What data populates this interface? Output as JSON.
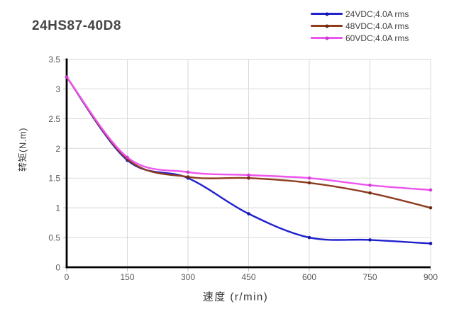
{
  "page": {
    "background": "#ffffff"
  },
  "header": {
    "title": "24HS87-40D8"
  },
  "chart_data": {
    "type": "line",
    "title": "24HS87-40D8",
    "x": [
      0,
      150,
      300,
      450,
      600,
      750,
      900
    ],
    "series": [
      {
        "name": "24VDC;4.0A rms",
        "color": "#2021CE",
        "marker_color": "#1516AC",
        "values": [
          3.2,
          1.8,
          1.5,
          0.9,
          0.5,
          0.46,
          0.4
        ]
      },
      {
        "name": "48VDC;4.0A rms",
        "color": "#8E3C1E",
        "marker_color": "#6F2D15",
        "values": [
          3.2,
          1.82,
          1.52,
          1.5,
          1.42,
          1.25,
          1.0
        ]
      },
      {
        "name": "60VDC;4.0A rms",
        "color": "#EE54EE",
        "marker_color": "#D13BD1",
        "values": [
          3.2,
          1.85,
          1.6,
          1.55,
          1.5,
          1.38,
          1.3
        ]
      }
    ],
    "xlabel": "速度 (r/min)",
    "ylabel": "转矩(N.m)",
    "xlim": [
      0,
      900
    ],
    "ylim": [
      0,
      3.5
    ],
    "xticks": [
      0,
      150,
      300,
      450,
      600,
      750,
      900
    ],
    "xtick_labels": [
      "0",
      "150",
      "300",
      "450",
      "600",
      "750",
      "900"
    ],
    "yticks": [
      0,
      0.5,
      1,
      1.5,
      2,
      2.5,
      3,
      3.5
    ],
    "ytick_labels": [
      "0",
      "0.5",
      "1",
      "1.5",
      "2",
      "2.5",
      "3",
      "3.5"
    ],
    "grid": true,
    "smooth": true,
    "legend_position": "top-right",
    "style": {
      "grid_color": "#D9D9D9",
      "axis_color": "#000000",
      "tick_mark_color": "#BFBFBF",
      "tick_label_color": "#595959",
      "title_color": "#454545",
      "legend_text_color": "#3F3F3F"
    }
  }
}
